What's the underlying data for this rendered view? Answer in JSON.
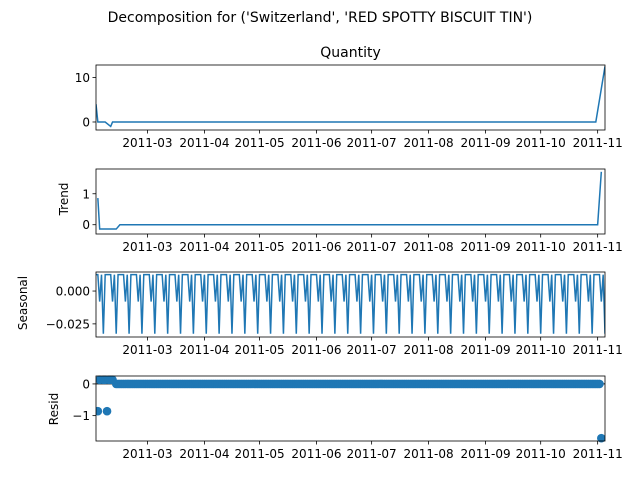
{
  "suptitle": "Decomposition for ('Switzerland', 'RED SPOTTY BISCUIT TIN')",
  "colors": {
    "series": "#1f77b4",
    "axis": "#000000"
  },
  "chart_data": [
    {
      "type": "line",
      "key": "observed",
      "title": "Quantity",
      "ylabel": "",
      "xlim": [
        "2011-02-01",
        "2011-11-05"
      ],
      "ylim": [
        -1.8,
        12.8
      ],
      "yticks": [
        0,
        10
      ],
      "xticks": [
        "2011-03",
        "2011-04",
        "2011-05",
        "2011-06",
        "2011-07",
        "2011-08",
        "2011-09",
        "2011-10",
        "2011-11"
      ],
      "x": [
        "2011-02-01",
        "2011-02-02",
        "2011-02-05",
        "2011-02-06",
        "2011-02-09",
        "2011-02-10",
        "2011-10-31",
        "2011-11-05"
      ],
      "y": [
        4,
        0,
        0,
        0,
        -1,
        0,
        0,
        12.5
      ]
    },
    {
      "type": "line",
      "key": "trend",
      "title": "",
      "ylabel": "Trend",
      "xlim": [
        "2011-02-01",
        "2011-11-05"
      ],
      "ylim": [
        -0.3,
        1.8
      ],
      "yticks": [
        0,
        1
      ],
      "xticks": [
        "2011-03",
        "2011-04",
        "2011-05",
        "2011-06",
        "2011-07",
        "2011-08",
        "2011-09",
        "2011-10",
        "2011-11"
      ],
      "x": [
        "2011-02-02",
        "2011-02-03",
        "2011-02-12",
        "2011-02-14",
        "2011-02-15",
        "2011-11-01",
        "2011-11-03"
      ],
      "y": [
        0.86,
        -0.14,
        -0.14,
        0.0,
        0.0,
        0.0,
        1.71
      ]
    },
    {
      "type": "line",
      "key": "seasonal",
      "title": "",
      "ylabel": "Seasonal",
      "xlim": [
        "2011-02-01",
        "2011-11-05"
      ],
      "ylim": [
        -0.035,
        0.0145
      ],
      "yticks": [
        0.0,
        -0.025
      ],
      "ytick_labels": [
        "0.000",
        "−0.025"
      ],
      "xticks": [
        "2011-03",
        "2011-04",
        "2011-05",
        "2011-06",
        "2011-07",
        "2011-08",
        "2011-09",
        "2011-10",
        "2011-11"
      ],
      "period_days": 7,
      "pattern": [
        0.0125,
        0.0125,
        -0.008,
        0.0125,
        -0.0325,
        0.0125,
        0.0125
      ]
    },
    {
      "type": "scatter",
      "key": "resid",
      "title": "",
      "ylabel": "Resid",
      "xlim": [
        "2011-02-01",
        "2011-11-05"
      ],
      "ylim": [
        -1.8,
        0.25
      ],
      "yticks": [
        0,
        -1
      ],
      "ytick_labels": [
        "0",
        "−1"
      ],
      "xticks": [
        "2011-03",
        "2011-04",
        "2011-05",
        "2011-06",
        "2011-07",
        "2011-08",
        "2011-09",
        "2011-10",
        "2011-11"
      ],
      "baseline": 0,
      "outliers": {
        "x": [
          "2011-02-02",
          "2011-02-03",
          "2011-02-05",
          "2011-02-06",
          "2011-02-07",
          "2011-02-08",
          "2011-02-09",
          "2011-02-10",
          "2011-11-03"
        ],
        "y": [
          -0.86,
          0.13,
          0.13,
          0.13,
          -0.86,
          0.13,
          0.13,
          0.13,
          -1.71
        ]
      },
      "points_from": "2011-02-12",
      "points_to": "2011-11-02"
    }
  ]
}
